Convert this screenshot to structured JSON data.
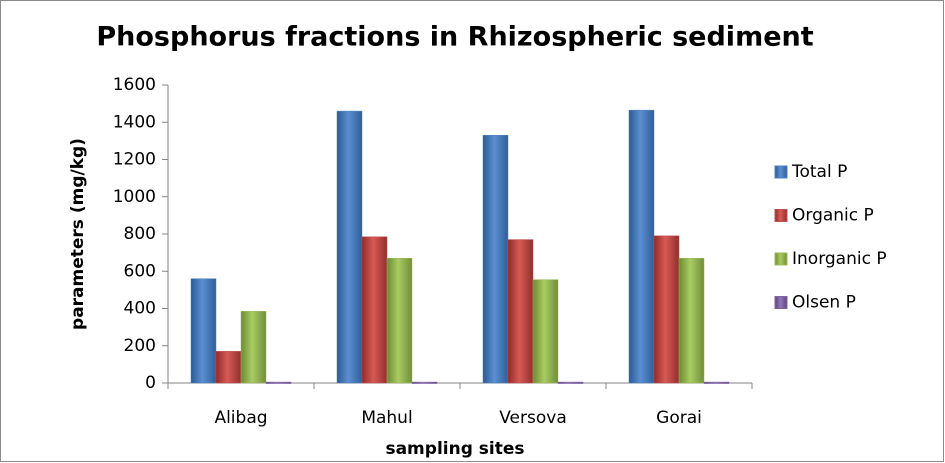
{
  "chart_data": {
    "type": "bar",
    "title": "Phosphorus fractions in Rhizospheric sediment",
    "x_label": "sampling sites",
    "y_label": "parameters (mg/kg)",
    "categories": [
      "Alibag",
      "Mahul",
      "Versova",
      "Gorai"
    ],
    "series": [
      {
        "name": "Total P",
        "color": "#4f81bd",
        "values": [
          560,
          1460,
          1330,
          1465
        ]
      },
      {
        "name": "Organic P",
        "color": "#c0504d",
        "values": [
          170,
          785,
          770,
          790
        ]
      },
      {
        "name": "Inorganic P",
        "color": "#9bbb59",
        "values": [
          385,
          670,
          555,
          670
        ]
      },
      {
        "name": "Olsen P",
        "color": "#8064a2",
        "values": [
          5,
          5,
          5,
          5
        ]
      }
    ],
    "ylim": [
      0,
      1600
    ],
    "yticks": [
      0,
      200,
      400,
      600,
      800,
      1000,
      1200,
      1400,
      1600
    ],
    "grid": false,
    "legend": "right"
  }
}
